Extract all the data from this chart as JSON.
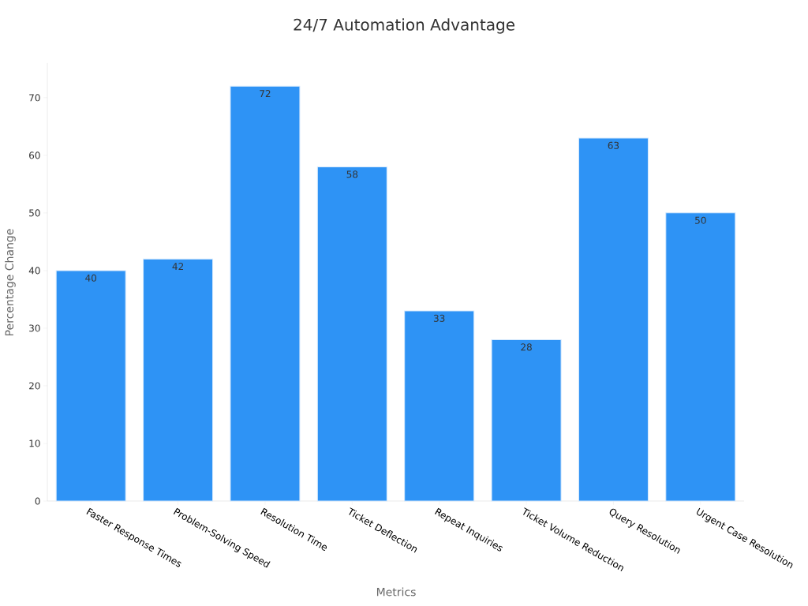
{
  "chart_data": {
    "type": "bar",
    "title": "24/7 Automation Advantage",
    "xlabel": "Metrics",
    "ylabel": "Percentage Change",
    "categories": [
      "Faster Response Times",
      "Problem-Solving Speed",
      "Resolution Time",
      "Ticket Deflection",
      "Repeat Inquiries",
      "Ticket Volume Reduction",
      "Query Resolution",
      "Urgent Case Resolution"
    ],
    "values": [
      40,
      42,
      72,
      58,
      33,
      28,
      63,
      50
    ],
    "color": "#2e93f5",
    "ylim": [
      0,
      76
    ],
    "yticks": [
      0,
      10,
      20,
      30,
      40,
      50,
      60,
      70
    ],
    "data_labels": true
  }
}
